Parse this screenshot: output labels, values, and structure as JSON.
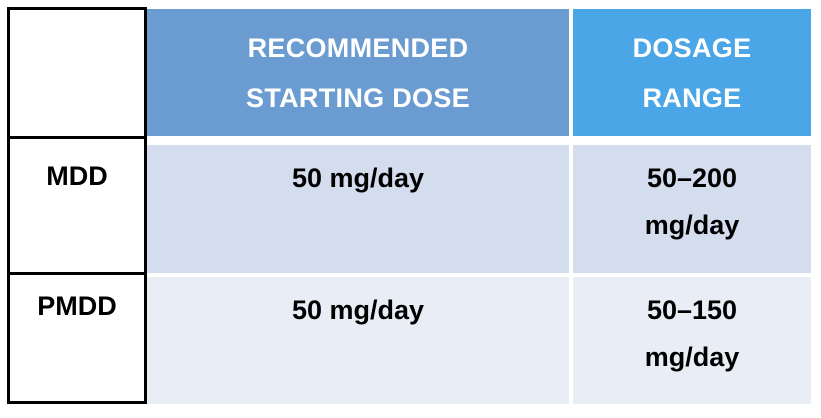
{
  "table": {
    "headers": [
      "RECOMMENDED STARTING DOSE",
      "DOSAGE RANGE"
    ],
    "rows": [
      {
        "label": "MDD",
        "starting_dose": "50 mg/day",
        "dosage_range": "50–200 mg/day"
      },
      {
        "label": "PMDD",
        "starting_dose": "50 mg/day",
        "dosage_range": "50–150 mg/day"
      }
    ]
  },
  "colors": {
    "header_starting_dose": "#6a9bd1",
    "header_dosage_range": "#4aa6e6",
    "row_1_bg": "#d4dded",
    "row_2_bg": "#e9edf5"
  }
}
